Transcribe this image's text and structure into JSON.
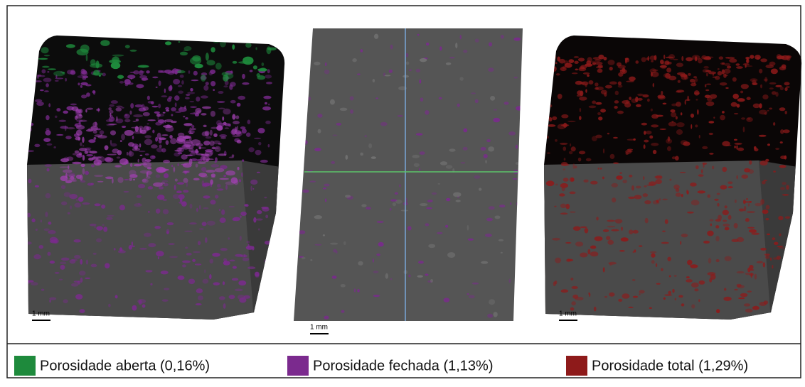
{
  "panels": [
    {
      "scale_label": "1 mm"
    },
    {
      "scale_label": "1 mm"
    },
    {
      "scale_label": "1 mm"
    }
  ],
  "legend": [
    {
      "label": "Porosidade aberta (0,16%)",
      "color": "#1e8a3c"
    },
    {
      "label": "Porosidade fechada (1,13%)",
      "color": "#7b2a8e"
    },
    {
      "label": "Porosidade total (1,29%)",
      "color": "#8e1a1a"
    }
  ]
}
